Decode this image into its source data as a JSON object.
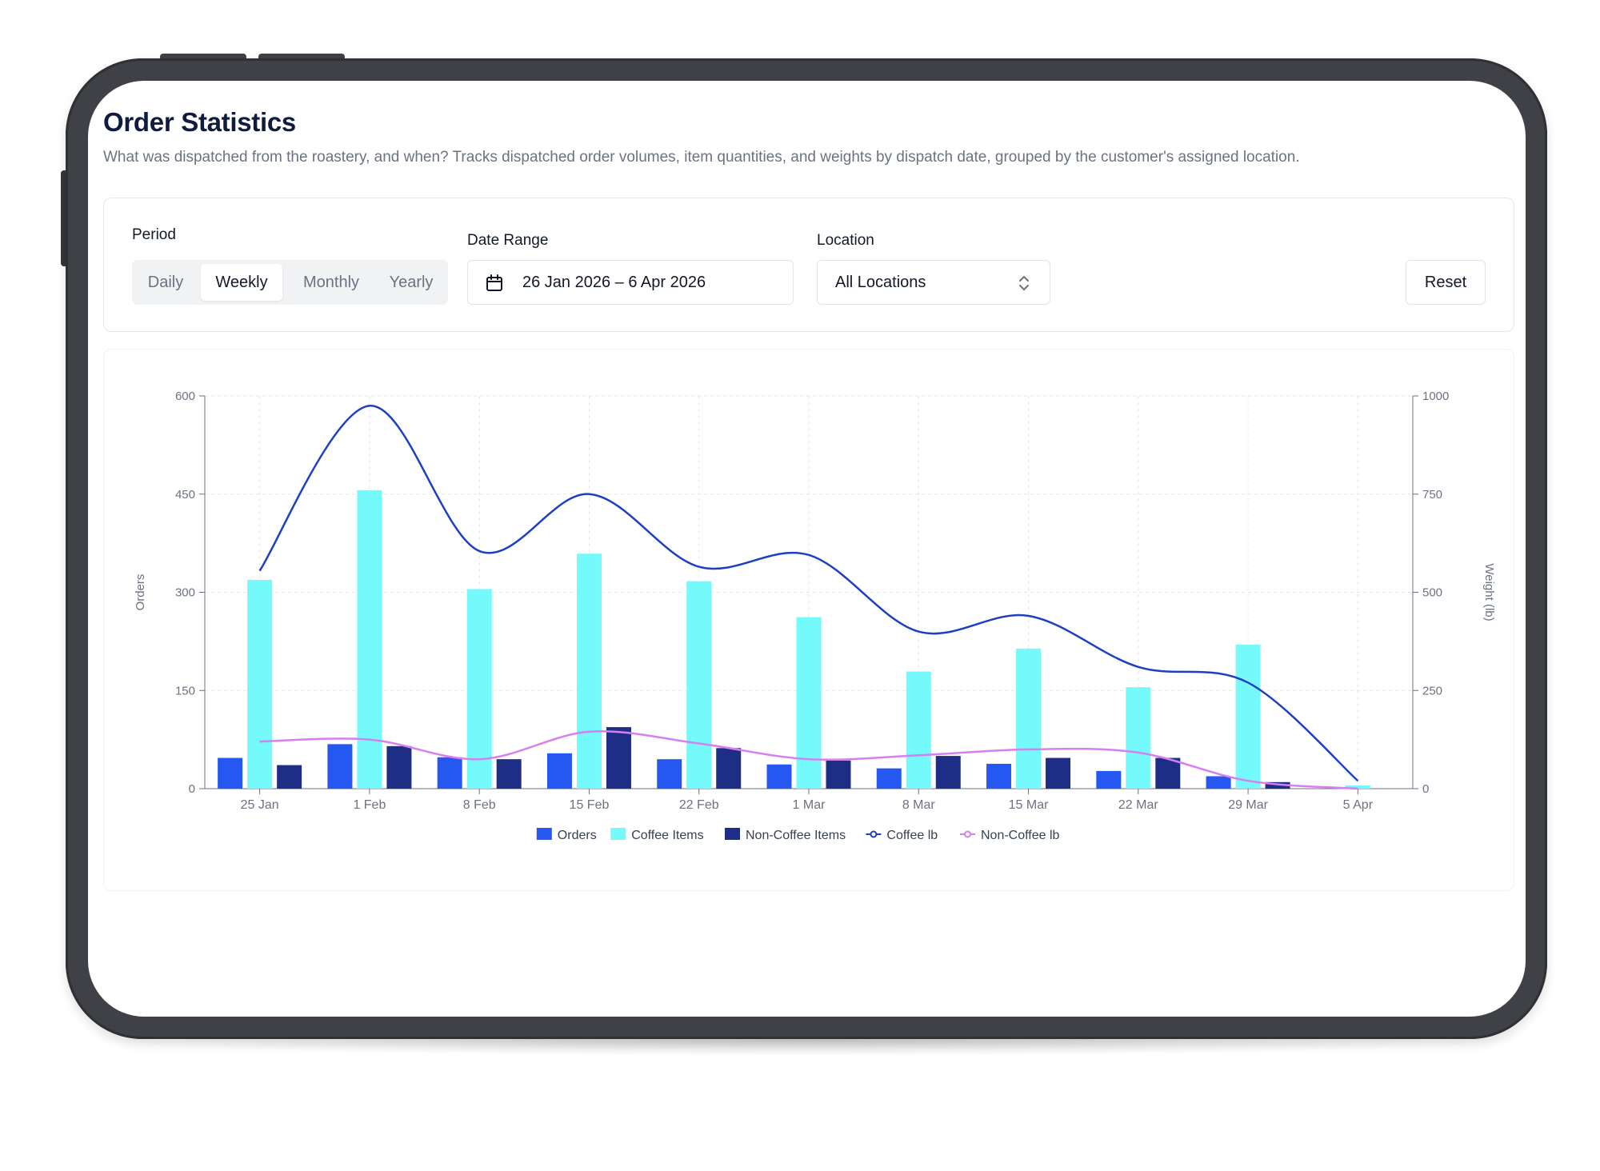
{
  "page": {
    "title": "Order Statistics",
    "description": "What was dispatched from the roastery, and when? Tracks dispatched order volumes, item quantities, and weights by dispatch date, grouped by the customer's assigned location."
  },
  "filters": {
    "period_label": "Period",
    "period_options": [
      "Daily",
      "Weekly",
      "Monthly",
      "Yearly"
    ],
    "period_selected": "Weekly",
    "date_range_label": "Date Range",
    "date_range_value": "26 Jan 2026 – 6 Apr 2026",
    "location_label": "Location",
    "location_value": "All Locations",
    "reset_label": "Reset"
  },
  "icons": {
    "date_range": "calendar-icon",
    "location": "chevron-up-down-icon"
  },
  "chart_data": {
    "type": "bar",
    "categories": [
      "25 Jan",
      "1 Feb",
      "8 Feb",
      "15 Feb",
      "22 Feb",
      "1 Mar",
      "8 Mar",
      "15 Mar",
      "22 Mar",
      "29 Mar",
      "5 Apr"
    ],
    "y_left": {
      "label": "Orders",
      "ticks": [
        0,
        150,
        300,
        450,
        600
      ],
      "range": [
        0,
        600
      ]
    },
    "y_right": {
      "label": "Weight (lb)",
      "ticks": [
        0,
        250,
        500,
        750,
        1000
      ],
      "range": [
        0,
        1000
      ]
    },
    "series": [
      {
        "name": "Orders",
        "type": "bar",
        "axis": "left",
        "color": "#2458f1",
        "values": [
          47,
          68,
          48,
          54,
          45,
          37,
          31,
          38,
          27,
          19,
          0
        ]
      },
      {
        "name": "Coffee Items",
        "type": "bar",
        "axis": "left",
        "color": "#74fafb",
        "values": [
          319,
          456,
          305,
          359,
          317,
          262,
          179,
          214,
          155,
          220,
          5
        ]
      },
      {
        "name": "Non-Coffee Items",
        "type": "bar",
        "axis": "left",
        "color": "#1e2e86",
        "values": [
          36,
          65,
          45,
          94,
          62,
          43,
          50,
          47,
          47,
          10,
          0
        ]
      },
      {
        "name": "Coffee lb",
        "type": "line",
        "axis": "right",
        "color": "#1d3fc4",
        "values": [
          555,
          975,
          605,
          750,
          565,
          595,
          400,
          440,
          310,
          270,
          20
        ]
      },
      {
        "name": "Non-Coffee lb",
        "type": "line",
        "axis": "right",
        "color": "#d77ef0",
        "values": [
          120,
          125,
          75,
          145,
          115,
          75,
          85,
          100,
          92,
          20,
          0
        ]
      }
    ],
    "grid": true,
    "legend_position": "bottom"
  }
}
